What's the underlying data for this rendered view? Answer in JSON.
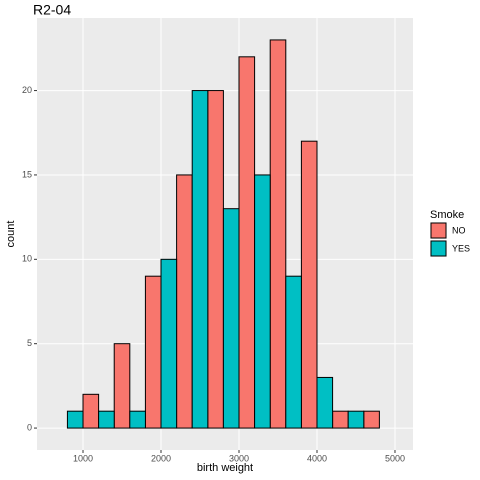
{
  "chart_data": {
    "type": "histogram",
    "title": "R2-04",
    "x_label": "birth weight",
    "y_label": "count",
    "legend_title": "Smoke",
    "bins": [
      600,
      800,
      1000,
      1200,
      1400,
      1600,
      1800,
      2000,
      2200,
      2400,
      2600,
      2800,
      3000,
      3200,
      3400,
      3600,
      3800,
      4000,
      4200,
      4400,
      4600,
      4800,
      5000
    ],
    "series": [
      {
        "name": "NO",
        "color": "#f8766d",
        "values": [
          0,
          0,
          2,
          0,
          5,
          0,
          9,
          0,
          15,
          0,
          20,
          0,
          22,
          0,
          23,
          0,
          17,
          0,
          1,
          0,
          1,
          0
        ]
      },
      {
        "name": "YES",
        "color": "#00bfc4",
        "values": [
          0,
          1,
          0,
          1,
          0,
          1,
          0,
          10,
          0,
          20,
          0,
          13,
          0,
          15,
          0,
          9,
          0,
          3,
          0,
          1,
          0,
          0
        ]
      }
    ],
    "xlim": [
      410,
      5231
    ],
    "ylim": [
      -1.3,
      24.3
    ],
    "xticks": [
      1000,
      2000,
      3000,
      4000,
      5000
    ],
    "yticks": [
      0,
      5,
      10,
      15,
      20
    ],
    "grid": true,
    "legend": "right"
  }
}
